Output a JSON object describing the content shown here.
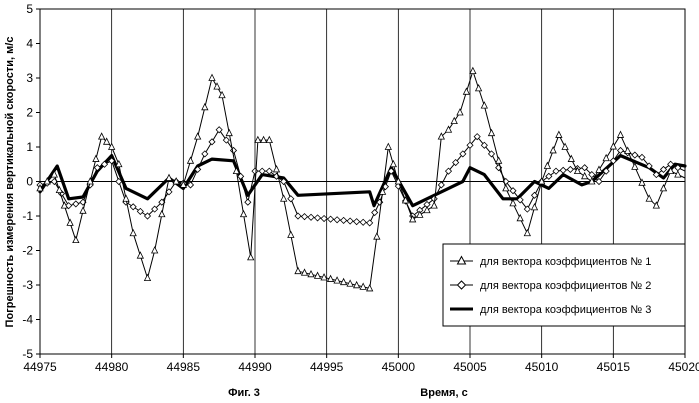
{
  "chart_data": {
    "type": "line",
    "ylabel": "Погрешность измерения вертикальной скорости, м/с",
    "xlabel": "Время, с",
    "caption": "Фиг. 3",
    "xlim": [
      44975,
      45020
    ],
    "ylim": [
      -5,
      5
    ],
    "x_ticks": [
      "44975",
      "44980",
      "44985",
      "44990",
      "44995",
      "45000",
      "45005",
      "45010",
      "45015",
      "45020"
    ],
    "y_ticks": [
      "5",
      "4",
      "3",
      "2",
      "1",
      "0",
      "-1",
      "-2",
      "-3",
      "-4",
      "-5"
    ],
    "grid": "vertical",
    "legend_position": "bottom-right",
    "series": [
      {
        "name": "для вектора коэффициентов № 1",
        "marker": "triangle",
        "color": "#000000",
        "points": [
          [
            44975,
            -0.2
          ],
          [
            44976,
            0.2
          ],
          [
            44976.7,
            -0.7
          ],
          [
            44977.5,
            -1.7
          ],
          [
            44978.5,
            0
          ],
          [
            44979.3,
            1.3
          ],
          [
            44980,
            1
          ],
          [
            44980.5,
            0.5
          ],
          [
            44981.5,
            -1.5
          ],
          [
            44982.5,
            -2.8
          ],
          [
            44983,
            -2
          ],
          [
            44984,
            0.1
          ],
          [
            44985,
            -0.1
          ],
          [
            44986,
            1.3
          ],
          [
            44987,
            3.0
          ],
          [
            44987.7,
            2.5
          ],
          [
            44988.7,
            0.3
          ],
          [
            44989.7,
            -2.2
          ],
          [
            44990.2,
            1.2
          ],
          [
            44991,
            1.2
          ],
          [
            44992,
            -0.5
          ],
          [
            44993,
            -2.6
          ],
          [
            44998,
            -3.1
          ],
          [
            44998.5,
            -1.6
          ],
          [
            44999.3,
            1.0
          ],
          [
            45000,
            0
          ],
          [
            45001,
            -1.1
          ],
          [
            45002.5,
            -0.7
          ],
          [
            45003,
            1.3
          ],
          [
            45003.5,
            1.5
          ],
          [
            45004.3,
            2.0
          ],
          [
            45005.2,
            3.2
          ],
          [
            45006,
            2.2
          ],
          [
            45007.5,
            -0.2
          ],
          [
            45009,
            -1.5
          ],
          [
            45010,
            0
          ],
          [
            45011.2,
            1.35
          ],
          [
            45012.5,
            0.3
          ],
          [
            45013.5,
            0
          ],
          [
            45015.5,
            1.35
          ],
          [
            45017.5,
            -0.5
          ],
          [
            45018,
            -0.7
          ],
          [
            45019,
            0.3
          ],
          [
            45020,
            0.1
          ]
        ]
      },
      {
        "name": "для вектора коэффициентов № 2",
        "marker": "diamond",
        "color": "#000000",
        "points": [
          [
            44975,
            -0.1
          ],
          [
            44976,
            0
          ],
          [
            44977,
            -0.7
          ],
          [
            44978,
            -0.6
          ],
          [
            44979,
            0.4
          ],
          [
            44980,
            0.6
          ],
          [
            44981,
            -0.6
          ],
          [
            44982.5,
            -1.0
          ],
          [
            44983.5,
            -0.6
          ],
          [
            44984.5,
            0
          ],
          [
            44985.5,
            -0.1
          ],
          [
            44986.5,
            0.8
          ],
          [
            44987.5,
            1.5
          ],
          [
            44988.5,
            0.9
          ],
          [
            44989.5,
            -0.6
          ],
          [
            44990,
            0.3
          ],
          [
            44991,
            0.3
          ],
          [
            44992,
            0
          ],
          [
            44993,
            -1.0
          ],
          [
            44998,
            -1.2
          ],
          [
            44998.7,
            -0.6
          ],
          [
            44999.5,
            0.3
          ],
          [
            45001,
            -1.0
          ],
          [
            45002.5,
            -0.5
          ],
          [
            45003.5,
            0.3
          ],
          [
            45005.5,
            1.3
          ],
          [
            45006.5,
            0.8
          ],
          [
            45007.5,
            0
          ],
          [
            45009,
            -0.8
          ],
          [
            45010,
            0
          ],
          [
            45011,
            0.3
          ],
          [
            45013,
            0.4
          ],
          [
            45014,
            0
          ],
          [
            45015.5,
            0.9
          ],
          [
            45017,
            0.7
          ],
          [
            45018,
            0.2
          ],
          [
            45019,
            0.5
          ],
          [
            45020,
            0.3
          ]
        ]
      },
      {
        "name": "для вектора коэффициентов № 3",
        "marker": "none",
        "color": "#000000",
        "points": [
          [
            44975,
            -0.3
          ],
          [
            44976.2,
            0.45
          ],
          [
            44977,
            -0.5
          ],
          [
            44978,
            -0.45
          ],
          [
            44979,
            0.3
          ],
          [
            44980,
            0.75
          ],
          [
            44981,
            -0.2
          ],
          [
            44982.5,
            -0.5
          ],
          [
            44984,
            0.1
          ],
          [
            44985,
            -0.2
          ],
          [
            44986,
            0.45
          ],
          [
            44987,
            0.65
          ],
          [
            44988.5,
            0.6
          ],
          [
            44989.5,
            -0.4
          ],
          [
            44990.5,
            0.2
          ],
          [
            44992,
            0.1
          ],
          [
            44993,
            -0.4
          ],
          [
            44998,
            -0.3
          ],
          [
            44998.3,
            -0.7
          ],
          [
            44999.5,
            0.4
          ],
          [
            45001,
            -0.7
          ],
          [
            45002.5,
            -0.4
          ],
          [
            45003.5,
            -0.2
          ],
          [
            45004.5,
            0
          ],
          [
            45005,
            0.4
          ],
          [
            45006,
            0.2
          ],
          [
            45007.3,
            -0.5
          ],
          [
            45008.3,
            -0.5
          ],
          [
            45009.5,
            0
          ],
          [
            45010.5,
            -0.2
          ],
          [
            45011.5,
            0.2
          ],
          [
            45012.8,
            -0.1
          ],
          [
            45013.5,
            0
          ],
          [
            45015.5,
            0.75
          ],
          [
            45017.5,
            0.4
          ],
          [
            45018.5,
            0.1
          ],
          [
            45019.3,
            0.5
          ],
          [
            45020,
            0.45
          ]
        ]
      }
    ]
  }
}
